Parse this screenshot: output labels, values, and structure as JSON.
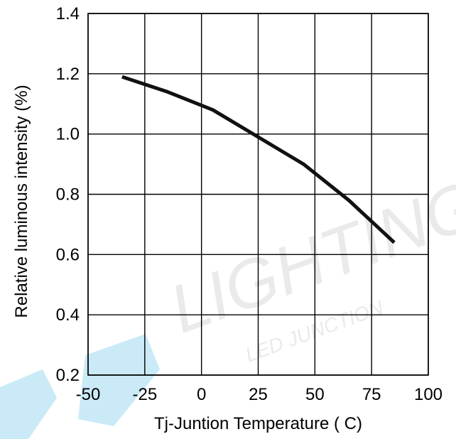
{
  "chart_data": {
    "type": "line",
    "title": "",
    "xlabel": "Tj-Juntion Temperature ( C)",
    "ylabel": "Relative luminous intensity (%)",
    "xlim": [
      -50,
      100
    ],
    "ylim": [
      0.2,
      1.4
    ],
    "x_ticks": [
      -50,
      -25,
      0,
      25,
      50,
      75,
      100
    ],
    "x_tick_labels": [
      "-50",
      "-25",
      "0",
      "25",
      "50",
      "75",
      "100"
    ],
    "y_ticks": [
      0.2,
      0.4,
      0.6,
      0.8,
      1.0,
      1.2,
      1.4
    ],
    "y_tick_labels": [
      "0.2",
      "0.4",
      "0.6",
      "0.8",
      "1.0",
      "1.2",
      "1.4"
    ],
    "grid": true,
    "series": [
      {
        "x": [
          -35,
          -15,
          5,
          25,
          45,
          65,
          85
        ],
        "y": [
          1.19,
          1.14,
          1.08,
          0.99,
          0.9,
          0.78,
          0.64
        ]
      }
    ]
  },
  "watermark": {
    "text": "LIGHTING",
    "subtext": "LED JUNCTION",
    "color": "#9fd8f0"
  }
}
